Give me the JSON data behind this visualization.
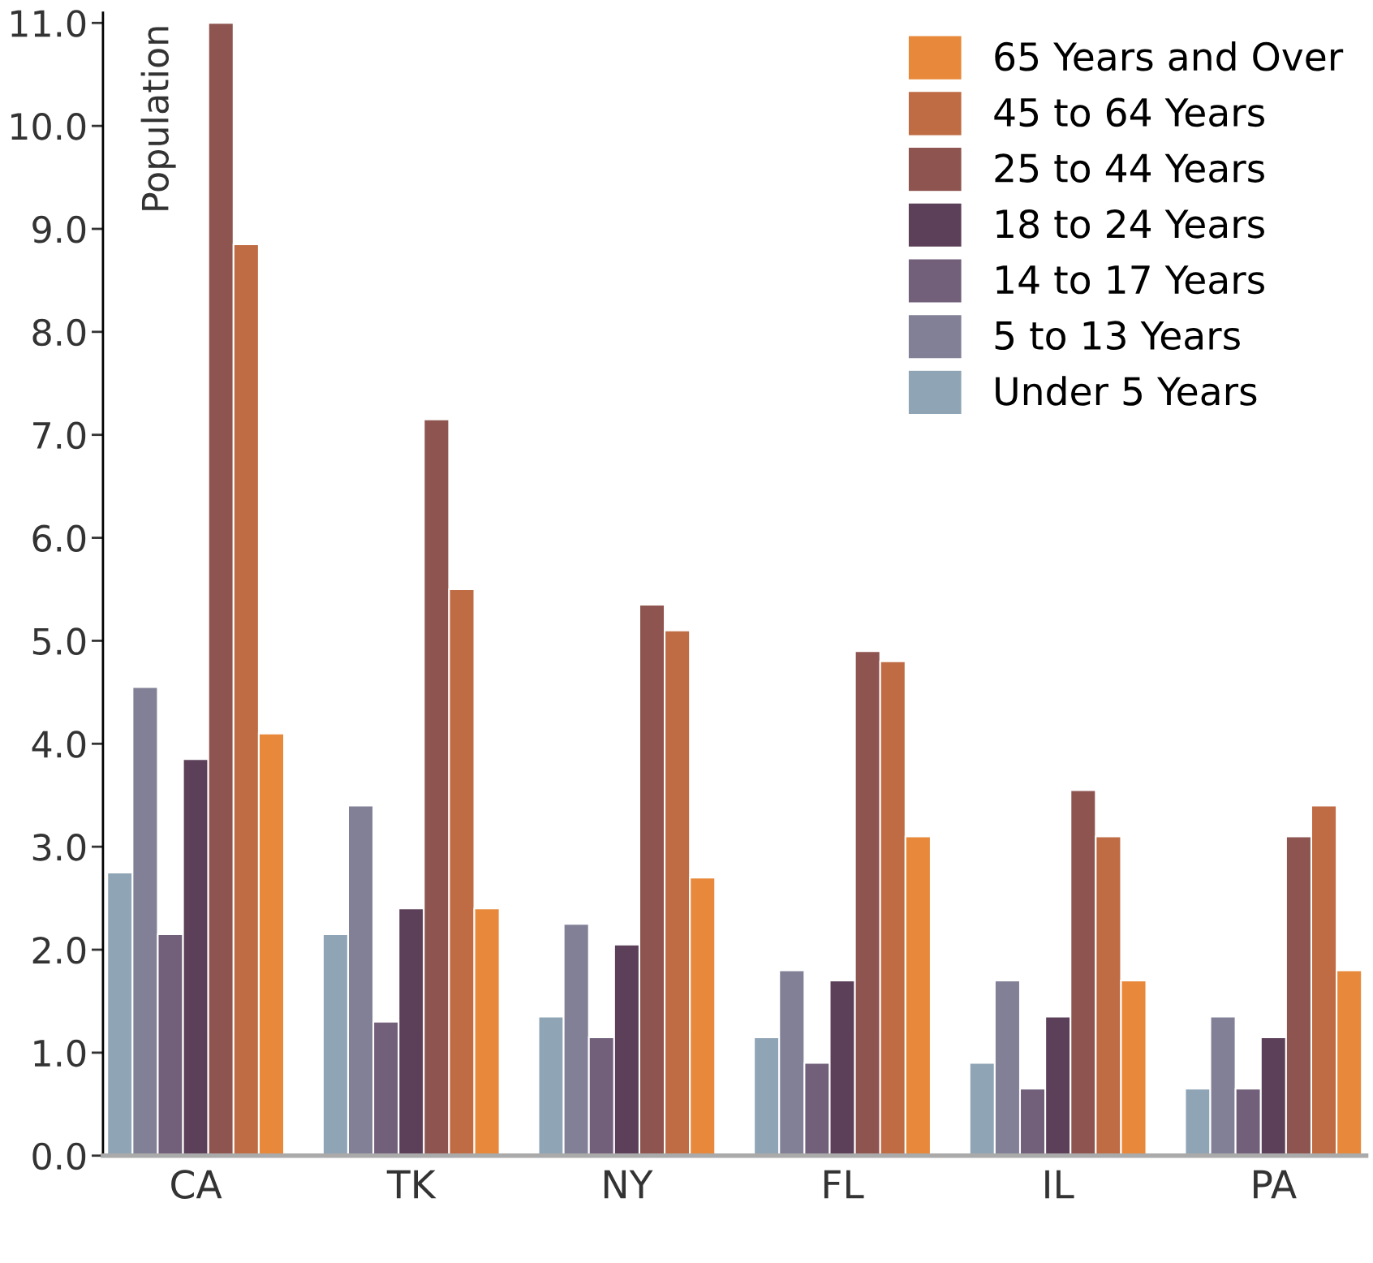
{
  "chart_data": {
    "type": "bar",
    "ylabel": "Population",
    "categories": [
      "CA",
      "TK",
      "NY",
      "FL",
      "IL",
      "PA"
    ],
    "series": [
      {
        "name": "Under 5 Years",
        "color": "#8fa5b5",
        "values": [
          2.75,
          2.15,
          1.35,
          1.15,
          0.9,
          0.65
        ]
      },
      {
        "name": "5 to 13 Years",
        "color": "#818097",
        "values": [
          4.55,
          3.4,
          2.25,
          1.8,
          1.7,
          1.35
        ]
      },
      {
        "name": "14 to 17 Years",
        "color": "#725f7a",
        "values": [
          2.15,
          1.3,
          1.15,
          0.9,
          0.65,
          0.65
        ]
      },
      {
        "name": "18 to 24 Years",
        "color": "#5c4059",
        "values": [
          3.85,
          2.4,
          2.05,
          1.7,
          1.35,
          1.15
        ]
      },
      {
        "name": "25 to 44 Years",
        "color": "#8e5450",
        "values": [
          11.0,
          7.15,
          5.35,
          4.9,
          3.55,
          3.1
        ]
      },
      {
        "name": "45 to 64 Years",
        "color": "#bf6b43",
        "values": [
          8.85,
          5.5,
          5.1,
          4.8,
          3.1,
          3.4
        ]
      },
      {
        "name": "65 Years and Over",
        "color": "#e8883a",
        "values": [
          4.1,
          2.4,
          2.7,
          3.1,
          1.7,
          1.8
        ]
      }
    ],
    "ylim": [
      0,
      11.1
    ],
    "yticks": [
      {
        "value": 0,
        "label": "0.0"
      },
      {
        "value": 1,
        "label": "1.0"
      },
      {
        "value": 2,
        "label": "2.0"
      },
      {
        "value": 3,
        "label": "3.0"
      },
      {
        "value": 4,
        "label": "4.0"
      },
      {
        "value": 5,
        "label": "5.0"
      },
      {
        "value": 6,
        "label": "6.0"
      },
      {
        "value": 7,
        "label": "7.0"
      },
      {
        "value": 8,
        "label": "8.0"
      },
      {
        "value": 9,
        "label": "9.0"
      },
      {
        "value": 10,
        "label": "10.0"
      },
      {
        "value": 11,
        "label": "11.0"
      }
    ],
    "legend": "top right",
    "grid": false
  }
}
